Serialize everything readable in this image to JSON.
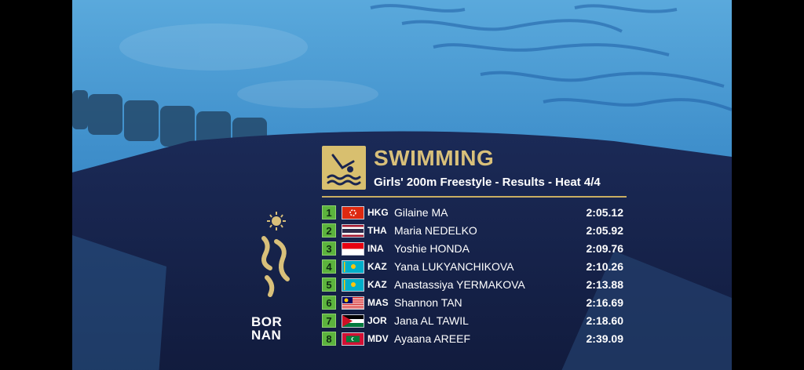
{
  "event": {
    "sport": "SWIMMING",
    "subtitle": "Girls' 200m Freestyle - Results - Heat 4/4"
  },
  "results": [
    {
      "rank": "1",
      "code": "HKG",
      "name": "Gilaine MA",
      "time": "2:05.12",
      "flag": "hong-kong-flag"
    },
    {
      "rank": "2",
      "code": "THA",
      "name": "Maria NEDELKO",
      "time": "2:05.92",
      "flag": "thailand-flag"
    },
    {
      "rank": "3",
      "code": "INA",
      "name": "Yoshie HONDA",
      "time": "2:09.76",
      "flag": "indonesia-flag"
    },
    {
      "rank": "4",
      "code": "KAZ",
      "name": "Yana LUKYANCHIKOVA",
      "time": "2:10.26",
      "flag": "kazakhstan-flag"
    },
    {
      "rank": "5",
      "code": "KAZ",
      "name": "Anastassiya YERMAKOVA",
      "time": "2:13.88",
      "flag": "kazakhstan-flag"
    },
    {
      "rank": "6",
      "code": "MAS",
      "name": "Shannon TAN",
      "time": "2:16.69",
      "flag": "malaysia-flag"
    },
    {
      "rank": "7",
      "code": "JOR",
      "name": "Jana AL TAWIL",
      "time": "2:18.60",
      "flag": "jordan-flag"
    },
    {
      "rank": "8",
      "code": "MDV",
      "name": "Ayaana AREEF",
      "time": "2:39.09",
      "flag": "maldives-flag"
    }
  ],
  "branding": {
    "logo_line1": "BOR",
    "logo_line2": "NAN",
    "icon": "swimming-pictogram-icon"
  },
  "colors": {
    "gold": "#d9c07a",
    "rank_green": "#5cb43d",
    "panel_navy": "#16224a"
  }
}
